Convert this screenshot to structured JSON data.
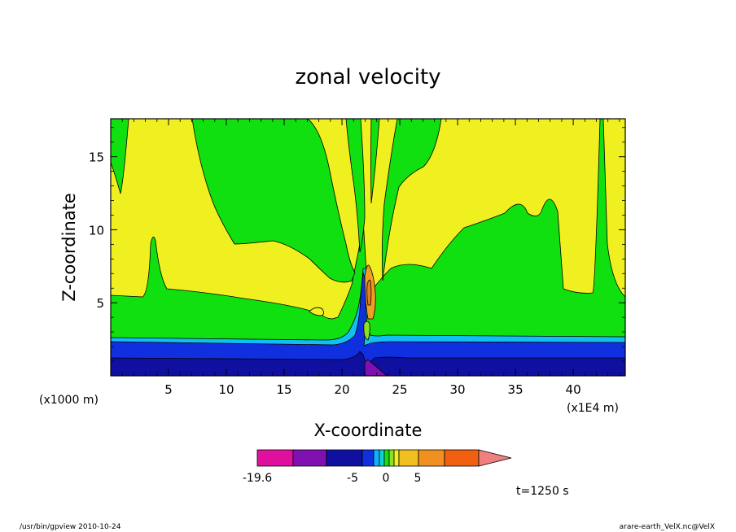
{
  "chart_data": {
    "type": "heatmap",
    "title": "zonal velocity",
    "xlabel": "X-coordinate",
    "ylabel": "Z-coordinate",
    "x_unit_label": "(x1000 m)",
    "x_multiplier_label": "(x1E4 m)",
    "xlim": [
      0,
      44.5
    ],
    "ylim": [
      0,
      17.6
    ],
    "x_ticks": [
      5,
      10,
      15,
      20,
      25,
      30,
      35,
      40
    ],
    "y_ticks": [
      5,
      10,
      15
    ],
    "x_tick_labels": [
      "5",
      "10",
      "15",
      "20",
      "25",
      "30",
      "35",
      "40"
    ],
    "y_tick_labels": [
      "5",
      "10",
      "15"
    ],
    "colorbar": {
      "tick_labels": [
        "-19.6",
        "-5",
        "0",
        "5"
      ],
      "colors": [
        "#e0109e",
        "#8010b0",
        "#1010a0",
        "#1030e0",
        "#10b0ff",
        "#10d0d0",
        "#10e010",
        "#90e020",
        "#f0f020",
        "#f0c020",
        "#f09020",
        "#f06010",
        "#ff2020",
        "#f08080"
      ]
    },
    "time_label": "t=1250 s",
    "colors": {
      "dark_blue": "#1010a0",
      "blue": "#1030e0",
      "cyan": "#10c0f0",
      "green": "#10e010",
      "yellow": "#f0f020",
      "orange": "#f0a020",
      "purple": "#8010b0"
    }
  },
  "footer": {
    "left": "/usr/bin/gpview  2010-10-24",
    "right": "arare-earth_VelX.nc@VelX"
  }
}
